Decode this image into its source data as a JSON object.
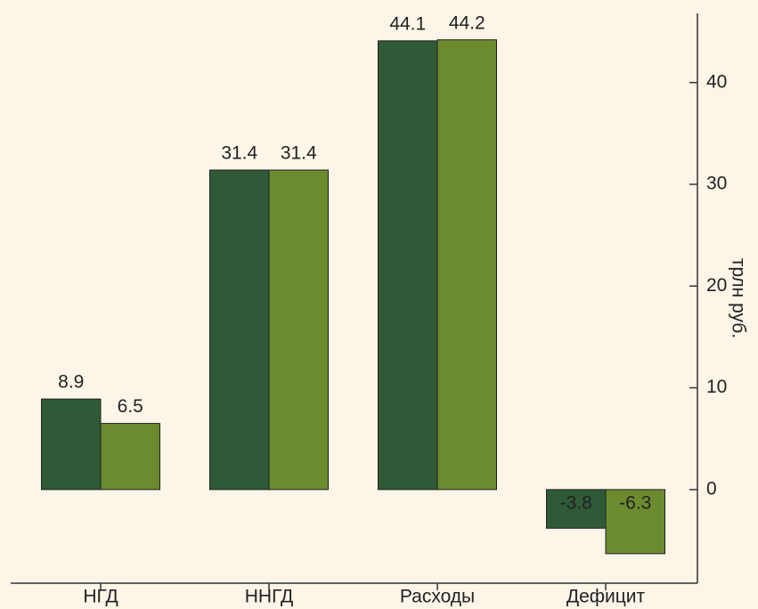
{
  "chart_data": {
    "type": "bar",
    "y_label": "трлн руб.",
    "categories": [
      "НГД",
      "ННГД",
      "Расходы",
      "Дефицит"
    ],
    "series": [
      {
        "color": "#2e5a38",
        "values": [
          8.9,
          31.4,
          44.1,
          -3.8
        ]
      },
      {
        "color": "#6b8b2e",
        "values": [
          6.5,
          31.4,
          44.2,
          -6.3
        ]
      }
    ],
    "ylim": [
      -9.2,
      46.8
    ],
    "yticks": [
      0,
      10,
      20,
      30,
      40
    ],
    "y_axis_side": "right"
  }
}
